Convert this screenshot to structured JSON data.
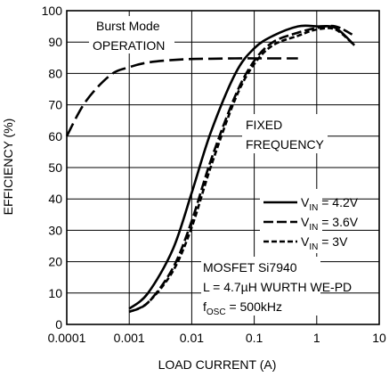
{
  "chart_data": {
    "type": "line",
    "xlabel": "LOAD CURRENT (A)",
    "ylabel": "EFFICIENCY (%)",
    "xscale": "log",
    "xlim": [
      0.0001,
      10
    ],
    "ylim": [
      0,
      100
    ],
    "grid": true,
    "x_tick_labels": [
      "0.0001",
      "0.001",
      "0.01",
      "0.1",
      "1",
      "10"
    ],
    "x_tick_values": [
      0.0001,
      0.001,
      0.01,
      0.1,
      1,
      10
    ],
    "y_tick_values": [
      0,
      10,
      20,
      30,
      40,
      50,
      60,
      70,
      80,
      90,
      100
    ],
    "y_tick_labels": [
      "0",
      "10",
      "20",
      "30",
      "40",
      "50",
      "60",
      "70",
      "80",
      "90",
      "100"
    ],
    "legend_position": "right",
    "legend": [
      {
        "sym": "V",
        "sub": "IN",
        "rest": " = 4.2V"
      },
      {
        "sym": "V",
        "sub": "IN",
        "rest": " = 3.6V"
      },
      {
        "sym": "V",
        "sub": "IN",
        "rest": " = 3V"
      }
    ],
    "annotations": {
      "burst_line1": "Burst Mode",
      "burst_line2": "OPERATION",
      "fixed_line1": "FIXED",
      "fixed_line2": "FREQUENCY",
      "mosfet": "MOSFET Si7940",
      "inductor": "L = 4.7µH WURTH WE-PD",
      "fosc_sym": "f",
      "fosc_sub": "OSC",
      "fosc_rest": " = 500kHz"
    },
    "series": [
      {
        "style": "solid",
        "x": [
          0.001,
          0.002,
          0.005,
          0.01,
          0.02,
          0.05,
          0.1,
          0.2,
          0.5,
          1,
          2,
          4
        ],
        "y": [
          5,
          10,
          24,
          42,
          61,
          80,
          88,
          92,
          95,
          95,
          94.5,
          89
        ]
      },
      {
        "style": "dash",
        "x": [
          0.001,
          0.002,
          0.005,
          0.01,
          0.02,
          0.05,
          0.1,
          0.2,
          0.5,
          1,
          2,
          4
        ],
        "y": [
          4,
          7,
          18,
          33,
          52,
          73,
          84,
          90,
          93,
          94.5,
          95,
          92
        ]
      },
      {
        "style": "shortdash",
        "x": [
          0.001,
          0.002,
          0.005,
          0.01,
          0.02,
          0.05,
          0.1,
          0.2,
          0.5,
          1,
          2,
          4
        ],
        "y": [
          4,
          7,
          17,
          31,
          50,
          72,
          83,
          89,
          92,
          94,
          94,
          89
        ]
      },
      {
        "style": "longdash",
        "x": [
          0.0001,
          0.0002,
          0.0005,
          0.001,
          0.002,
          0.005,
          0.01,
          0.02,
          0.05,
          0.1,
          0.2,
          0.5
        ],
        "y": [
          60,
          71,
          79.5,
          82,
          83.5,
          84.3,
          84.6,
          84.7,
          84.8,
          84.8,
          84.8,
          84.8
        ]
      }
    ]
  }
}
